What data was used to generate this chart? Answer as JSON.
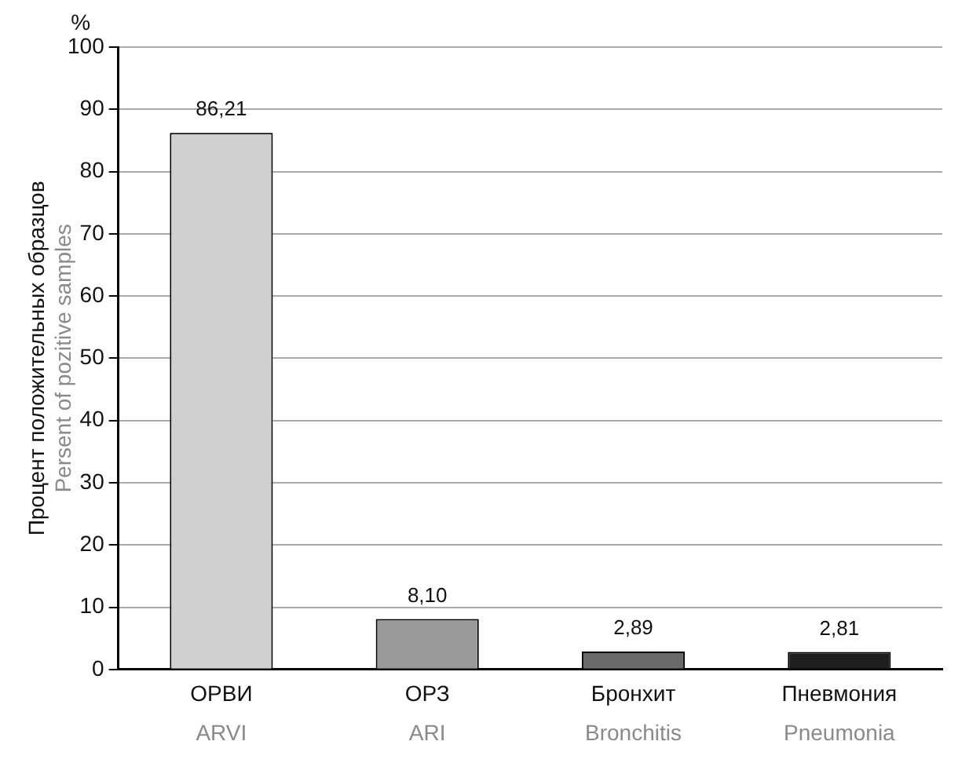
{
  "chart_data": {
    "type": "bar",
    "ylabel": "Процент положительных образцов\nPersent of pozitive samples",
    "annotations": [
      "%"
    ],
    "categories": [
      "ОРВИ\nARVI",
      "ОРЗ\nARI",
      "Бронхит\nBronchitis",
      "Пневмония\nPneumonia"
    ],
    "values": [
      86.21,
      8.1,
      2.89,
      2.81
    ],
    "value_labels": [
      "86,21",
      "8,10",
      "2,89",
      "2,81"
    ],
    "colors": [
      "#d0d0d0",
      "#9a9a9a",
      "#6a6a6a",
      "#1e1e1e"
    ],
    "ylim": [
      0,
      100
    ],
    "yticks": [
      0,
      10,
      20,
      30,
      40,
      50,
      60,
      70,
      80,
      90,
      100
    ],
    "grid": "y",
    "legend": false
  }
}
